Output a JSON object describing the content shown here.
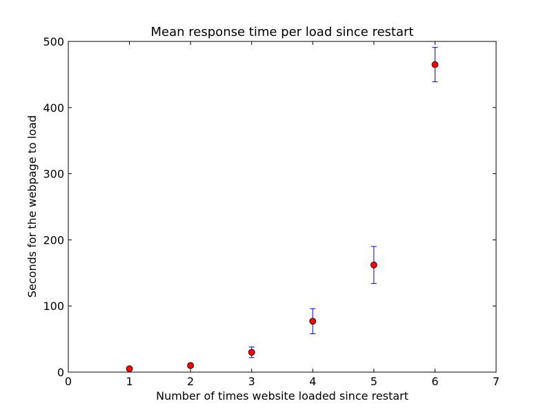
{
  "chart_data": {
    "type": "scatter",
    "title": "Mean response time per load since restart",
    "xlabel": "Number of times website loaded since restart",
    "ylabel": "Seconds for the webpage to load",
    "xlim": [
      0,
      7
    ],
    "ylim": [
      0,
      500
    ],
    "xticks": [
      "0",
      "1",
      "2",
      "3",
      "4",
      "5",
      "6",
      "7"
    ],
    "yticks": [
      "0",
      "100",
      "200",
      "300",
      "400",
      "500"
    ],
    "grid": false,
    "x": [
      1,
      2,
      3,
      4,
      5,
      6
    ],
    "y": [
      5,
      10,
      30,
      77,
      162,
      465
    ],
    "yerr": [
      2,
      3,
      8,
      19,
      28,
      26
    ],
    "marker_color": "#ff0000",
    "errorbar_color": "#0000ff"
  }
}
